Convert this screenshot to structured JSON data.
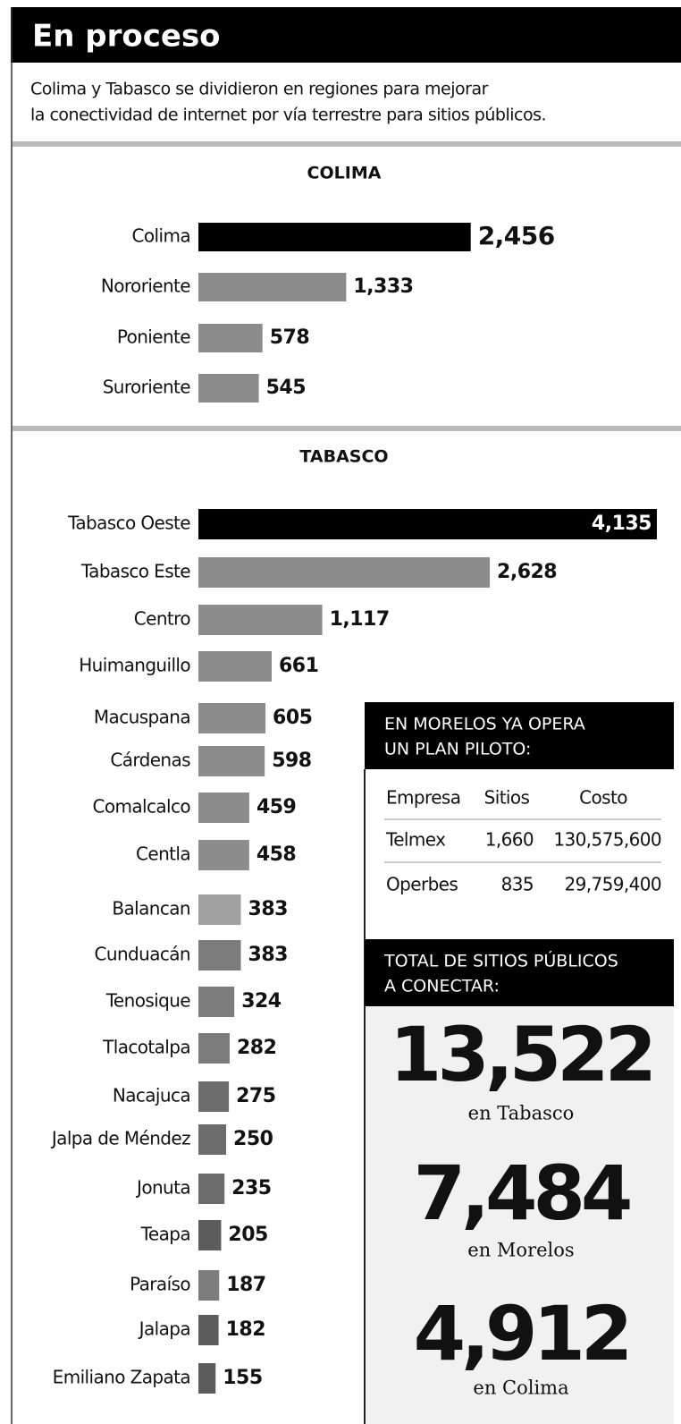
{
  "header": {
    "title": "En proceso",
    "subtitle": [
      "Colima y Tabasco se dividieron en regiones para mejorar",
      "la conectividad de internet por vía terrestre para sitios públicos."
    ]
  },
  "chart_data": [
    {
      "type": "bar",
      "title": "COLIMA",
      "categories": [
        "Colima",
        "Nororiente",
        "Poniente",
        "Suroriente"
      ],
      "values": [
        2456,
        1333,
        578,
        545
      ],
      "value_labels": [
        "2,456",
        "1,333",
        "578",
        "545"
      ],
      "colors": [
        "#000000",
        "#8c8c8c",
        "#8c8c8c",
        "#8c8c8c"
      ]
    },
    {
      "type": "bar",
      "title": "TABASCO",
      "categories": [
        "Tabasco Oeste",
        "Tabasco Este",
        "Centro",
        "Huimanguillo",
        "Macuspana",
        "Cárdenas",
        "Comalcalco",
        "Centla",
        "Balancan",
        "Cunduacán",
        "Tenosique",
        "Tlacotalpa",
        "Nacajuca",
        "Jalpa de Méndez",
        "Jonuta",
        "Teapa",
        "Paraíso",
        "Jalapa",
        "Emiliano Zapata"
      ],
      "values": [
        4135,
        2628,
        1117,
        661,
        605,
        598,
        459,
        458,
        383,
        383,
        324,
        282,
        275,
        250,
        235,
        205,
        187,
        182,
        155
      ],
      "value_labels": [
        "4,135",
        "2,628",
        "1,117",
        "661",
        "605",
        "598",
        "459",
        "458",
        "383",
        "383",
        "324",
        "282",
        "275",
        "250",
        "235",
        "205",
        "187",
        "182",
        "155"
      ],
      "colors": [
        "#000000",
        "#8c8c8c",
        "#8c8c8c",
        "#8c8c8c",
        "#8c8c8c",
        "#8c8c8c",
        "#8c8c8c",
        "#8c8c8c",
        "#a0a0a0",
        "#7c7c7c",
        "#7c7c7c",
        "#7c7c7c",
        "#6c6c6c",
        "#6c6c6c",
        "#6c6c6c",
        "#5c5c5c",
        "#7c7c7c",
        "#5c5c5c",
        "#5c5c5c"
      ]
    }
  ],
  "pilot": {
    "title": [
      "EN MORELOS YA OPERA",
      "UN PLAN PILOTO:"
    ],
    "table": {
      "header": [
        "Empresa",
        "Sitios",
        "Costo"
      ],
      "rows": [
        [
          "Telmex",
          "1,660",
          "130,575,600"
        ],
        [
          "Operbes",
          "835",
          "29,759,400"
        ]
      ]
    }
  },
  "totals": {
    "title": [
      "TOTAL DE SITIOS PÚBLICOS",
      "A CONECTAR:"
    ],
    "items": [
      {
        "value": "13,522",
        "label": "en Tabasco"
      },
      {
        "value": "7,484",
        "label": "en Morelos"
      },
      {
        "value": "4,912",
        "label": "en Colima"
      }
    ]
  }
}
